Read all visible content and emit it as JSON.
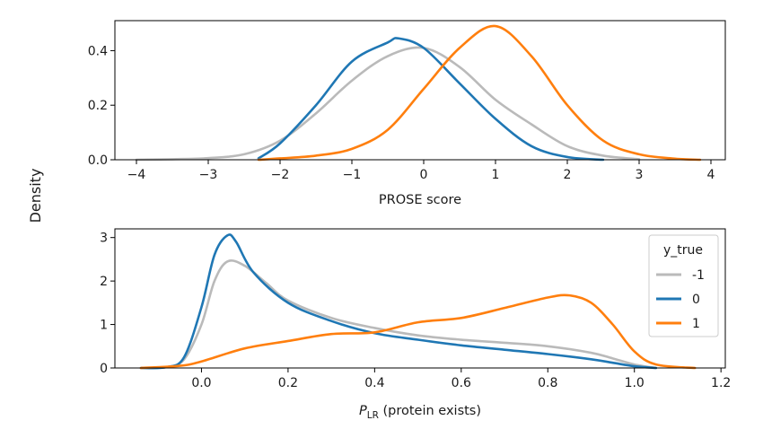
{
  "figure": {
    "ylabel": "Density"
  },
  "colors": {
    "-1": "#bababa",
    "0": "#1f77b4",
    "1": "#ff7f0e"
  },
  "chart_data": [
    {
      "type": "line",
      "title": "",
      "xlabel": "PROSE score",
      "xlim": [
        -4.3,
        4.2
      ],
      "ylim": [
        0,
        0.51
      ],
      "xticks": [
        -4,
        -3,
        -2,
        -1,
        0,
        1,
        2,
        3,
        4
      ],
      "yticks": [
        0.0,
        0.2,
        0.4
      ],
      "xtick_labels": [
        "−4",
        "−3",
        "−2",
        "−1",
        "0",
        "1",
        "2",
        "3",
        "4"
      ],
      "ytick_labels": [
        "0.0",
        "0.2",
        "0.4"
      ],
      "grid": false,
      "series": [
        {
          "name": "-1",
          "x": [
            -4.0,
            -3.5,
            -3.0,
            -2.5,
            -2.0,
            -1.5,
            -1.0,
            -0.5,
            0.0,
            0.5,
            1.0,
            1.5,
            2.0,
            2.5,
            3.0
          ],
          "y": [
            0.0,
            0.002,
            0.006,
            0.02,
            0.07,
            0.17,
            0.29,
            0.38,
            0.41,
            0.34,
            0.22,
            0.13,
            0.05,
            0.015,
            0.002
          ]
        },
        {
          "name": "0",
          "x": [
            -2.3,
            -2.0,
            -1.5,
            -1.0,
            -0.5,
            -0.35,
            0.0,
            0.5,
            1.0,
            1.5,
            2.0,
            2.5
          ],
          "y": [
            0.005,
            0.06,
            0.2,
            0.36,
            0.43,
            0.445,
            0.41,
            0.28,
            0.15,
            0.05,
            0.01,
            0.0
          ]
        },
        {
          "name": "1",
          "x": [
            -2.3,
            -2.0,
            -1.5,
            -1.0,
            -0.5,
            0.0,
            0.5,
            1.0,
            1.5,
            2.0,
            2.5,
            3.0,
            3.5,
            3.85
          ],
          "y": [
            0.0,
            0.005,
            0.015,
            0.04,
            0.11,
            0.26,
            0.41,
            0.49,
            0.38,
            0.2,
            0.07,
            0.02,
            0.004,
            0.0
          ]
        }
      ]
    },
    {
      "type": "line",
      "title": "",
      "xlabel": "(protein exists)",
      "xlabel_symbol": "P",
      "xlabel_subscript": "LR",
      "xlim": [
        -0.2,
        1.21
      ],
      "ylim": [
        0,
        3.2
      ],
      "xticks": [
        0.0,
        0.2,
        0.4,
        0.6,
        0.8,
        1.0,
        1.2
      ],
      "yticks": [
        0,
        1,
        2,
        3
      ],
      "xtick_labels": [
        "0.0",
        "0.2",
        "0.4",
        "0.6",
        "0.8",
        "1.0",
        "1.2"
      ],
      "ytick_labels": [
        "0",
        "1",
        "2",
        "3"
      ],
      "grid": false,
      "legend": {
        "title": "y_true",
        "position": "top-right",
        "labels": [
          "-1",
          "0",
          "1"
        ]
      },
      "series": [
        {
          "name": "-1",
          "x": [
            -0.14,
            -0.08,
            -0.04,
            0.0,
            0.03,
            0.06,
            0.1,
            0.15,
            0.2,
            0.3,
            0.4,
            0.5,
            0.6,
            0.7,
            0.8,
            0.9,
            0.95,
            1.0,
            1.05
          ],
          "y": [
            0.0,
            0.02,
            0.2,
            1.0,
            2.0,
            2.45,
            2.35,
            1.95,
            1.55,
            1.15,
            0.92,
            0.75,
            0.65,
            0.58,
            0.5,
            0.35,
            0.22,
            0.08,
            0.0
          ]
        },
        {
          "name": "0",
          "x": [
            -0.14,
            -0.08,
            -0.04,
            0.0,
            0.03,
            0.06,
            0.08,
            0.12,
            0.2,
            0.3,
            0.4,
            0.5,
            0.6,
            0.7,
            0.8,
            0.9,
            0.95,
            1.0,
            1.05
          ],
          "y": [
            0.0,
            0.02,
            0.25,
            1.4,
            2.6,
            3.05,
            2.9,
            2.2,
            1.5,
            1.08,
            0.8,
            0.65,
            0.52,
            0.42,
            0.32,
            0.2,
            0.12,
            0.04,
            0.0
          ]
        },
        {
          "name": "1",
          "x": [
            -0.14,
            -0.05,
            0.0,
            0.1,
            0.2,
            0.3,
            0.4,
            0.5,
            0.6,
            0.7,
            0.8,
            0.85,
            0.9,
            0.95,
            1.0,
            1.05,
            1.14
          ],
          "y": [
            0.0,
            0.05,
            0.15,
            0.45,
            0.62,
            0.78,
            0.82,
            1.05,
            1.15,
            1.38,
            1.62,
            1.67,
            1.5,
            1.0,
            0.38,
            0.08,
            0.0
          ]
        }
      ]
    }
  ]
}
